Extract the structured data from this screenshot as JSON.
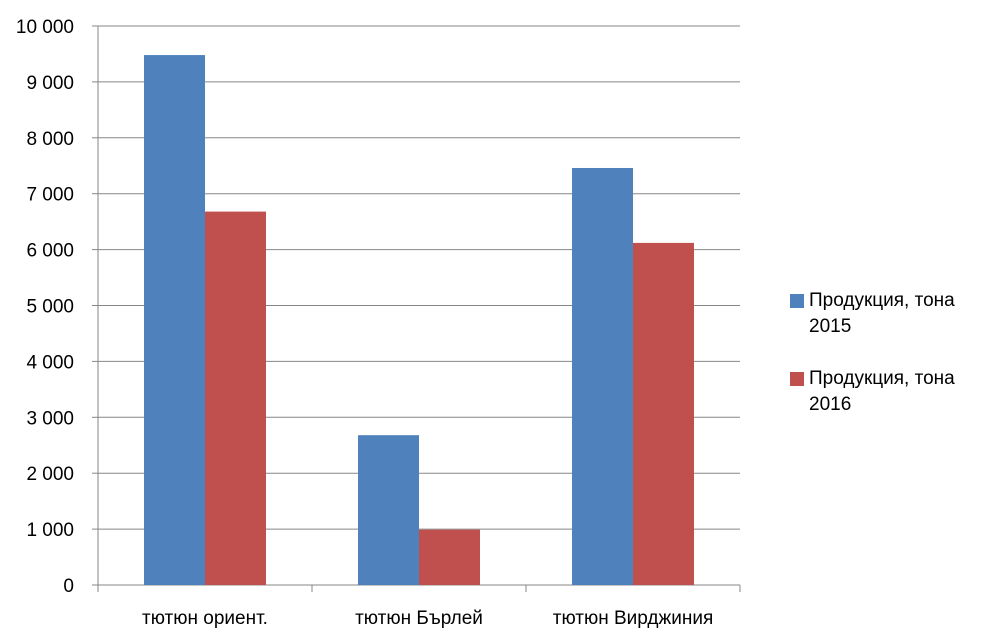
{
  "chart_data": {
    "type": "bar",
    "categories": [
      "тютюн ориент.",
      "тютюн Бърлей",
      "тютюн Вирджиния"
    ],
    "series": [
      {
        "name": "Продукция, тона 2015",
        "values": [
          9480,
          2680,
          7460
        ],
        "color": "#4F81BD"
      },
      {
        "name": "Продукция, тона 2016",
        "values": [
          6680,
          990,
          6120
        ],
        "color": "#C0504D"
      }
    ],
    "ylim": [
      0,
      10000
    ],
    "yticks": [
      0,
      1000,
      2000,
      3000,
      4000,
      5000,
      6000,
      7000,
      8000,
      9000,
      10000
    ],
    "ytick_labels": [
      "0",
      "1 000",
      "2 000",
      "3 000",
      "4 000",
      "5 000",
      "6 000",
      "7 000",
      "8 000",
      "9 000",
      "10 000"
    ],
    "grid": true,
    "legend_position": "right"
  }
}
